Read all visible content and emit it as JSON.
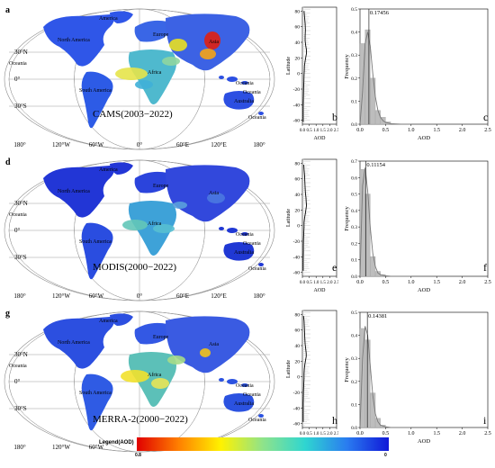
{
  "chart_data": [
    {
      "type": "map",
      "panel": "a",
      "title": "CAMS(2003−2022)",
      "lon_ticks": [
        "180°",
        "120°W",
        "60°W",
        "0°",
        "60°E",
        "120°E",
        "180°"
      ],
      "lat_ticks": [
        "30°N",
        "0°",
        "30°S"
      ],
      "regions": [
        "North America",
        "South America",
        "Europe",
        "Asia",
        "Africa",
        "Oceania",
        "Oceania",
        "Oceania",
        "Australia",
        "Oceania",
        "America"
      ]
    },
    {
      "type": "line",
      "panel": "b",
      "xlabel": "AOD",
      "ylabel": "Latitude",
      "xticks": [
        "0.0",
        "0.5",
        "1.0",
        "1.5",
        "2.0",
        "2.5"
      ],
      "yticks": [
        "80",
        "60",
        "40",
        "20",
        "0",
        "-20",
        "-40",
        "-60"
      ],
      "xlim": [
        0,
        2.5
      ],
      "ylim": [
        -65,
        85
      ],
      "x": [
        0.12,
        0.16,
        0.2,
        0.22,
        0.2,
        0.2,
        0.24,
        0.3,
        0.3,
        0.26,
        0.2,
        0.15,
        0.14,
        0.12,
        0.11,
        0.09,
        0.08,
        0.07,
        0.06,
        0.06,
        0.06,
        0.06
      ],
      "y": [
        80,
        72,
        64,
        56,
        48,
        42,
        36,
        30,
        26,
        22,
        16,
        10,
        4,
        -2,
        -10,
        -18,
        -26,
        -34,
        -42,
        -50,
        -56,
        -62
      ]
    },
    {
      "type": "bar",
      "panel": "c",
      "peak_label": "0.17456",
      "peak": 0.17456,
      "xlabel": "AOD",
      "ylabel": "Frequency",
      "xticks": [
        "0.0",
        "0.5",
        "1.0",
        "1.5",
        "2.0",
        "2.5"
      ],
      "yticks": [
        "0.0",
        "0.1",
        "0.2",
        "0.3",
        "0.4",
        "0.5"
      ],
      "xlim": [
        0,
        2.5
      ],
      "ylim": [
        0,
        0.5
      ],
      "bin_centers": [
        0.05,
        0.15,
        0.25,
        0.35,
        0.45,
        0.55
      ],
      "values": [
        0.35,
        0.41,
        0.2,
        0.06,
        0.03,
        0.01
      ],
      "fit": {
        "x": [
          0.0,
          0.05,
          0.1,
          0.15,
          0.2,
          0.25,
          0.3,
          0.35,
          0.4,
          0.45,
          0.5,
          0.6,
          0.8,
          1.0
        ],
        "y": [
          0.0,
          0.14,
          0.35,
          0.4,
          0.34,
          0.22,
          0.12,
          0.06,
          0.03,
          0.015,
          0.008,
          0.002,
          0.0,
          0.0
        ]
      }
    },
    {
      "type": "map",
      "panel": "d",
      "title": "MODIS(2000−2022)",
      "lon_ticks": [
        "180°",
        "120°W",
        "60°W",
        "0°",
        "60°E",
        "120°E",
        "180°"
      ],
      "lat_ticks": [
        "30°N",
        "0°",
        "30°S"
      ],
      "regions": [
        "North America",
        "South America",
        "Europe",
        "Asia",
        "Africa",
        "Oceania",
        "Oceania",
        "Oceania",
        "Australia",
        "Oceania",
        "America"
      ]
    },
    {
      "type": "line",
      "panel": "e",
      "xlabel": "AOD",
      "ylabel": "Latitude",
      "xticks": [
        "0.0",
        "0.5",
        "1.0",
        "1.5",
        "2.0",
        "2.5"
      ],
      "yticks": [
        "80",
        "60",
        "40",
        "20",
        "0",
        "-20",
        "-40",
        "-60"
      ],
      "xlim": [
        0,
        2.5
      ],
      "ylim": [
        -65,
        85
      ],
      "x": [
        0.1,
        0.12,
        0.16,
        0.18,
        0.2,
        0.22,
        0.26,
        0.28,
        0.3,
        0.27,
        0.22,
        0.16,
        0.12,
        0.12,
        0.1,
        0.08,
        0.07,
        0.07,
        0.06,
        0.06,
        0.06
      ],
      "y": [
        78,
        72,
        64,
        56,
        48,
        42,
        36,
        30,
        26,
        22,
        16,
        10,
        4,
        -2,
        -10,
        -18,
        -26,
        -34,
        -42,
        -50,
        -58
      ]
    },
    {
      "type": "bar",
      "panel": "f",
      "peak_label": "0.11154",
      "peak": 0.11154,
      "xlabel": "AOD",
      "ylabel": "Frequency",
      "xticks": [
        "0.0",
        "0.5",
        "1.0",
        "1.5",
        "2.0",
        "2.5"
      ],
      "yticks": [
        "0.0",
        "0.1",
        "0.2",
        "0.3",
        "0.4",
        "0.5",
        "0.6",
        "0.7"
      ],
      "xlim": [
        0,
        2.5
      ],
      "ylim": [
        0,
        0.7
      ],
      "bin_centers": [
        0.05,
        0.15,
        0.25,
        0.35,
        0.45
      ],
      "values": [
        0.65,
        0.5,
        0.12,
        0.03,
        0.01
      ],
      "fit": {
        "x": [
          0.0,
          0.05,
          0.1,
          0.15,
          0.2,
          0.25,
          0.3,
          0.35,
          0.4,
          0.5,
          0.6,
          0.8,
          1.0
        ],
        "y": [
          0.0,
          0.55,
          0.66,
          0.52,
          0.3,
          0.14,
          0.06,
          0.02,
          0.01,
          0.003,
          0.0,
          0.0,
          0.0
        ]
      }
    },
    {
      "type": "map",
      "panel": "g",
      "title": "MERRA-2(2000−2022)",
      "lon_ticks": [
        "180°",
        "120°W",
        "60°W",
        "0°",
        "60°E",
        "120°E",
        "180°"
      ],
      "lat_ticks": [
        "30°N",
        "0°",
        "30°S"
      ],
      "regions": [
        "North America",
        "South America",
        "Europe",
        "Asia",
        "Africa",
        "Oceania",
        "Oceania",
        "Oceania",
        "Australia",
        "Oceania",
        "America"
      ]
    },
    {
      "type": "line",
      "panel": "h",
      "xlabel": "AOD",
      "ylabel": "Latitude",
      "xticks": [
        "0.0",
        "0.5",
        "1.0",
        "1.5",
        "2.0",
        "2.5"
      ],
      "yticks": [
        "80",
        "60",
        "40",
        "20",
        "0",
        "-20",
        "-40",
        "-60"
      ],
      "xlim": [
        0,
        2.5
      ],
      "ylim": [
        -65,
        85
      ],
      "x": [
        0.08,
        0.12,
        0.14,
        0.16,
        0.18,
        0.2,
        0.24,
        0.28,
        0.28,
        0.24,
        0.18,
        0.14,
        0.12,
        0.12,
        0.1,
        0.08,
        0.07,
        0.06,
        0.06,
        0.06,
        0.06
      ],
      "y": [
        78,
        72,
        64,
        56,
        48,
        42,
        36,
        30,
        26,
        22,
        16,
        10,
        4,
        -2,
        -10,
        -18,
        -26,
        -34,
        -42,
        -50,
        -58
      ]
    },
    {
      "type": "bar",
      "panel": "i",
      "peak_label": "0.14381",
      "peak": 0.14381,
      "xlabel": "AOD",
      "ylabel": "Frequency",
      "xticks": [
        "0.0",
        "0.5",
        "1.0",
        "1.5",
        "2.0",
        "2.5"
      ],
      "yticks": [
        "0.0",
        "0.1",
        "0.2",
        "0.3",
        "0.4",
        "0.5"
      ],
      "xlim": [
        0,
        2.5
      ],
      "ylim": [
        0,
        0.5
      ],
      "bin_centers": [
        0.05,
        0.15,
        0.25,
        0.35,
        0.45
      ],
      "values": [
        0.43,
        0.38,
        0.15,
        0.04,
        0.01
      ],
      "fit": {
        "x": [
          0.0,
          0.05,
          0.1,
          0.15,
          0.2,
          0.25,
          0.3,
          0.35,
          0.4,
          0.5,
          0.6,
          0.8,
          1.0
        ],
        "y": [
          0.0,
          0.3,
          0.44,
          0.4,
          0.27,
          0.14,
          0.06,
          0.025,
          0.01,
          0.003,
          0.0,
          0.0,
          0.0
        ]
      }
    }
  ],
  "legend": {
    "title": "Legend(AOD)",
    "high": "0.8",
    "low": "0",
    "colors": [
      "#e00000",
      "#ff8000",
      "#fff200",
      "#8fe38a",
      "#2fd6d0",
      "#2a7cf0",
      "#1018d8"
    ]
  }
}
